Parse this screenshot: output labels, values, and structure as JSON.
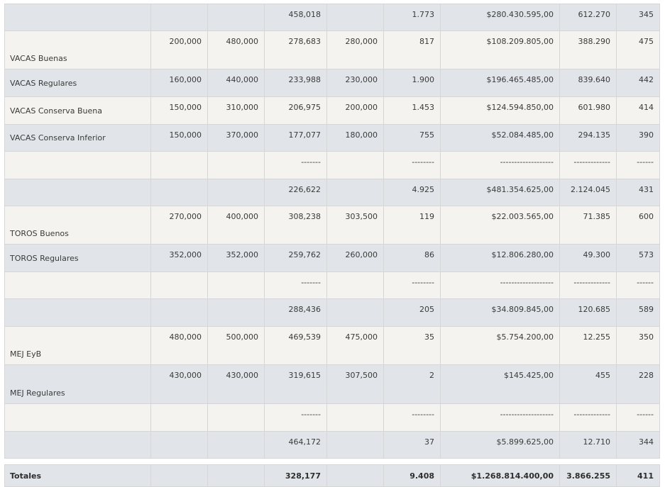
{
  "rows": [
    {
      "label": "",
      "c1": "",
      "c2": "",
      "c3": "458,018",
      "c4": "",
      "c5": "1.773",
      "c6": "$280.430.595,00",
      "c7": "612.270",
      "c8": "345"
    },
    {
      "label": "VACAS Buenas",
      "c1": "200,000",
      "c2": "480,000",
      "c3": "278,683",
      "c4": "280,000",
      "c5": "817",
      "c6": "$108.209.805,00",
      "c7": "388.290",
      "c8": "475"
    },
    {
      "label": "VACAS Regulares",
      "c1": "160,000",
      "c2": "440,000",
      "c3": "233,988",
      "c4": "230,000",
      "c5": "1.900",
      "c6": "$196.465.485,00",
      "c7": "839.640",
      "c8": "442"
    },
    {
      "label": "VACAS Conserva Buena",
      "c1": "150,000",
      "c2": "310,000",
      "c3": "206,975",
      "c4": "200,000",
      "c5": "1.453",
      "c6": "$124.594.850,00",
      "c7": "601.980",
      "c8": "414"
    },
    {
      "label": "VACAS Conserva Inferior",
      "c1": "150,000",
      "c2": "370,000",
      "c3": "177,077",
      "c4": "180,000",
      "c5": "755",
      "c6": "$52.084.485,00",
      "c7": "294.135",
      "c8": "390"
    },
    {
      "label": "",
      "c1": "",
      "c2": "",
      "c3": "-------",
      "c4": "",
      "c5": "--------",
      "c6": "-------------------",
      "c7": "-------------",
      "c8": "------"
    },
    {
      "label": "",
      "c1": "",
      "c2": "",
      "c3": "226,622",
      "c4": "",
      "c5": "4.925",
      "c6": "$481.354.625,00",
      "c7": "2.124.045",
      "c8": "431"
    },
    {
      "label": "TOROS Buenos",
      "c1": "270,000",
      "c2": "400,000",
      "c3": "308,238",
      "c4": "303,500",
      "c5": "119",
      "c6": "$22.003.565,00",
      "c7": "71.385",
      "c8": "600"
    },
    {
      "label": "TOROS Regulares",
      "c1": "352,000",
      "c2": "352,000",
      "c3": "259,762",
      "c4": "260,000",
      "c5": "86",
      "c6": "$12.806.280,00",
      "c7": "49.300",
      "c8": "573"
    },
    {
      "label": "",
      "c1": "",
      "c2": "",
      "c3": "-------",
      "c4": "",
      "c5": "--------",
      "c6": "-------------------",
      "c7": "-------------",
      "c8": "------"
    },
    {
      "label": "",
      "c1": "",
      "c2": "",
      "c3": "288,436",
      "c4": "",
      "c5": "205",
      "c6": "$34.809.845,00",
      "c7": "120.685",
      "c8": "589"
    },
    {
      "label": "MEJ EyB",
      "c1": "480,000",
      "c2": "500,000",
      "c3": "469,539",
      "c4": "475,000",
      "c5": "35",
      "c6": "$5.754.200,00",
      "c7": "12.255",
      "c8": "350"
    },
    {
      "label": "MEJ Regulares",
      "c1": "430,000",
      "c2": "430,000",
      "c3": "319,615",
      "c4": "307,500",
      "c5": "2",
      "c6": "$145.425,00",
      "c7": "455",
      "c8": "228"
    },
    {
      "label": "",
      "c1": "",
      "c2": "",
      "c3": "-------",
      "c4": "",
      "c5": "--------",
      "c6": "-------------------",
      "c7": "-------------",
      "c8": "------"
    },
    {
      "label": "",
      "c1": "",
      "c2": "",
      "c3": "464,172",
      "c4": "",
      "c5": "37",
      "c6": "$5.899.625,00",
      "c7": "12.710",
      "c8": "344"
    }
  ],
  "totals": {
    "label": "Totales",
    "c1": "",
    "c2": "",
    "c3": "328,177",
    "c4": "",
    "c5": "9.408",
    "c6": "$1.268.814.400,00",
    "c7": "3.866.255",
    "c8": "411"
  }
}
